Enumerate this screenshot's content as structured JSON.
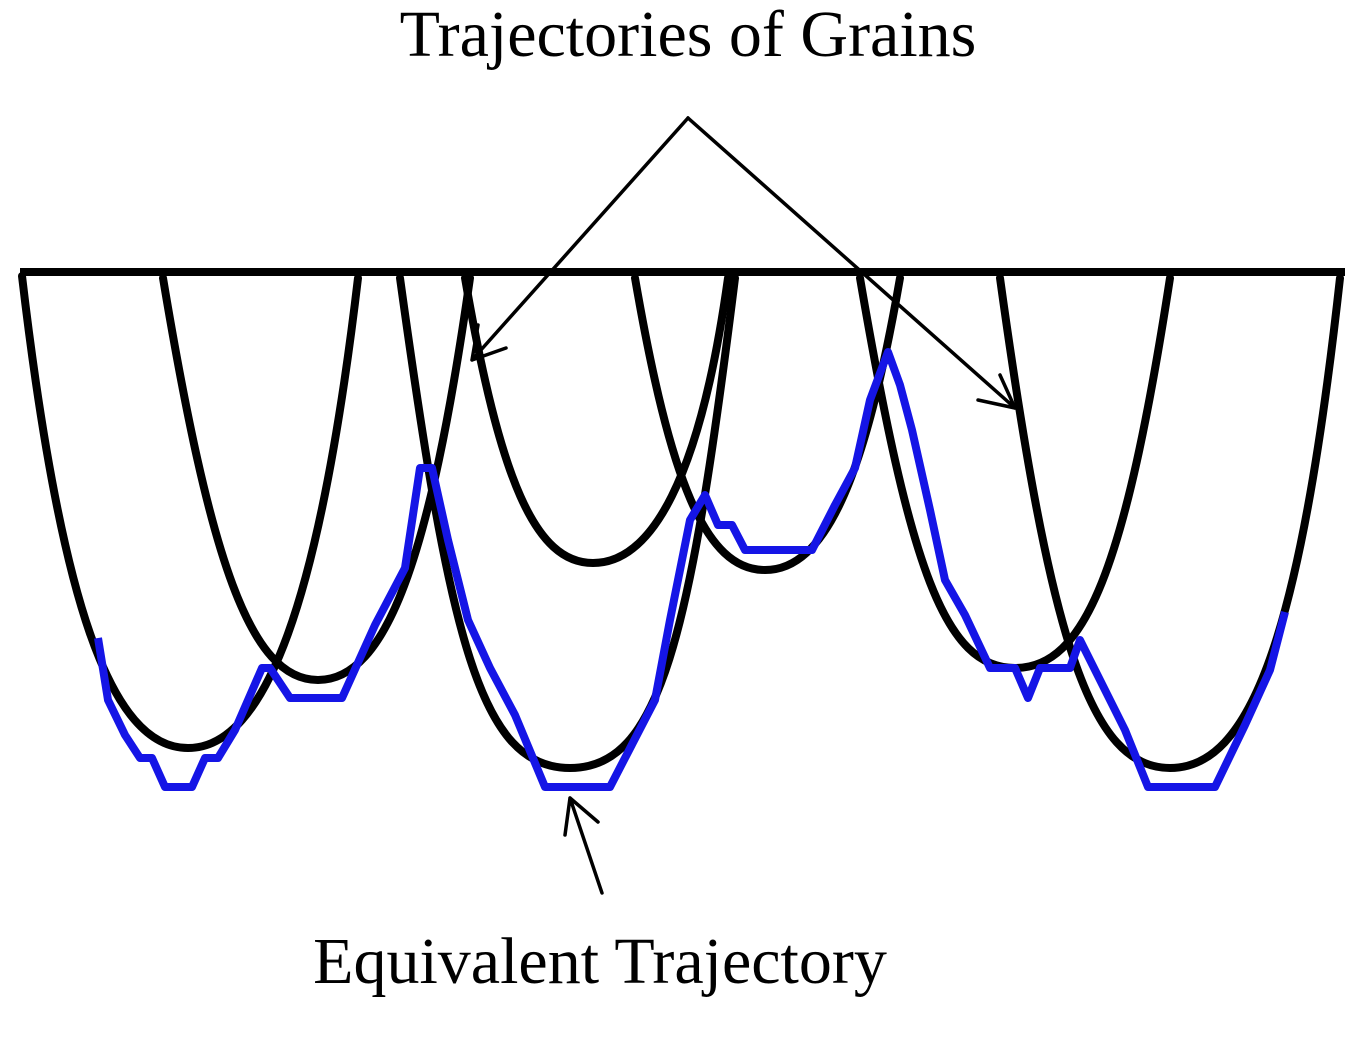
{
  "labels": {
    "grains": "Trajectories of Grains",
    "equivalent": "Equivalent Trajectory"
  }
}
